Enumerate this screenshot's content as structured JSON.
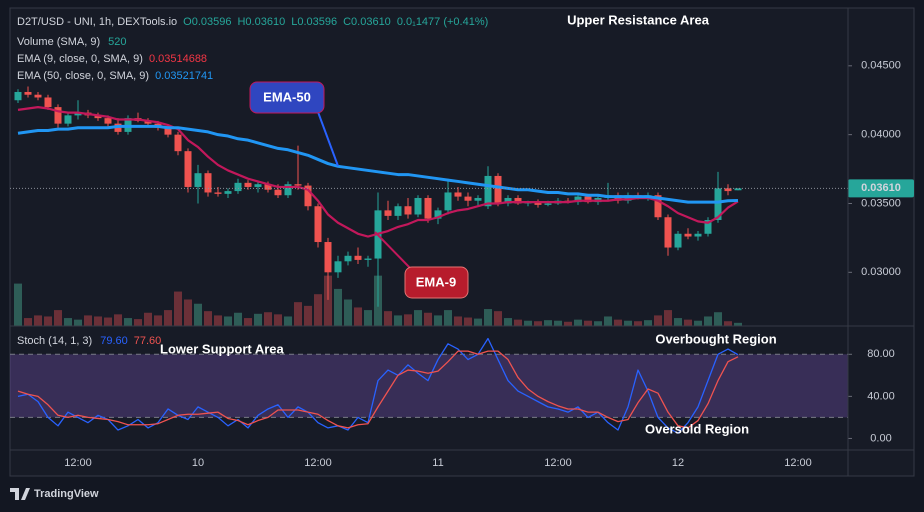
{
  "chart_data": [
    {
      "type": "candlestick",
      "title": "D2T/USD - UNI, 1h, DEXTools.io",
      "header": [
        "O0.03596",
        "H0.03610",
        "L0.03596",
        "C0.03610",
        "0.0₁1477 (+0.41%)"
      ],
      "open": [
        0.0425,
        0.0431,
        0.0429,
        0.0427,
        0.042,
        0.0408,
        0.0414,
        0.0416,
        0.0414,
        0.0412,
        0.0408,
        0.0402,
        0.0412,
        0.041,
        0.0408,
        0.0405,
        0.04,
        0.0388,
        0.0362,
        0.0372,
        0.0358,
        0.0357,
        0.0359,
        0.0365,
        0.0362,
        0.0364,
        0.036,
        0.0356,
        0.0364,
        0.0363,
        0.0348,
        0.0322,
        0.03,
        0.0308,
        0.0312,
        0.0309,
        0.031,
        0.0345,
        0.0341,
        0.0348,
        0.0342,
        0.0354,
        0.0339,
        0.0345,
        0.0358,
        0.0355,
        0.0352,
        0.0348,
        0.037,
        0.035,
        0.0354,
        0.035,
        0.0351,
        0.0349,
        0.035,
        0.0352,
        0.0351,
        0.0355,
        0.0351,
        0.0354,
        0.0356,
        0.0352,
        0.0356,
        0.0355,
        0.0356,
        0.034,
        0.0318,
        0.0328,
        0.0326,
        0.0328,
        0.0338,
        0.0361,
        0.03596,
        null,
        null,
        null,
        null,
        null,
        null
      ],
      "high": [
        0.0433,
        0.0435,
        0.0431,
        0.0429,
        0.0422,
        0.0416,
        0.0425,
        0.0418,
        0.0416,
        0.0414,
        0.0412,
        0.0414,
        0.0416,
        0.0412,
        0.041,
        0.0407,
        0.0402,
        0.039,
        0.0378,
        0.0374,
        0.0362,
        0.0361,
        0.0368,
        0.0367,
        0.0366,
        0.0366,
        0.0364,
        0.0366,
        0.0392,
        0.0365,
        0.035,
        0.0325,
        0.0312,
        0.0315,
        0.0318,
        0.0312,
        0.0358,
        0.0352,
        0.035,
        0.0354,
        0.0356,
        0.0356,
        0.0347,
        0.0368,
        0.0362,
        0.0358,
        0.0356,
        0.0377,
        0.0372,
        0.0356,
        0.0356,
        0.0352,
        0.0353,
        0.0352,
        0.0354,
        0.0354,
        0.0356,
        0.0357,
        0.0355,
        0.0365,
        0.0358,
        0.0358,
        0.0358,
        0.0358,
        0.0358,
        0.0342,
        0.033,
        0.0332,
        0.033,
        0.034,
        0.0373,
        0.0364,
        0.0361,
        null,
        null,
        null,
        null,
        null,
        null
      ],
      "low": [
        0.0423,
        0.0427,
        0.0425,
        0.0418,
        0.0405,
        0.0406,
        0.0411,
        0.0412,
        0.041,
        0.0406,
        0.04,
        0.04,
        0.0409,
        0.0406,
        0.0403,
        0.0398,
        0.0385,
        0.0358,
        0.035,
        0.0355,
        0.0355,
        0.0354,
        0.0357,
        0.036,
        0.0358,
        0.0358,
        0.0354,
        0.0354,
        0.036,
        0.0345,
        0.0318,
        0.028,
        0.0296,
        0.0305,
        0.0306,
        0.0304,
        0.0275,
        0.0338,
        0.0338,
        0.0339,
        0.034,
        0.0336,
        0.0335,
        0.0342,
        0.0352,
        0.0348,
        0.0348,
        0.0346,
        0.0348,
        0.0348,
        0.0349,
        0.0348,
        0.0347,
        0.0348,
        0.0349,
        0.035,
        0.0349,
        0.035,
        0.0349,
        0.0352,
        0.035,
        0.035,
        0.0353,
        0.0352,
        0.0338,
        0.0312,
        0.0316,
        0.0324,
        0.0323,
        0.0326,
        0.0336,
        0.0356,
        0.03596,
        null,
        null,
        null,
        null,
        null,
        null
      ],
      "close": [
        0.0431,
        0.0429,
        0.0427,
        0.042,
        0.0408,
        0.0414,
        0.0416,
        0.0414,
        0.0412,
        0.0408,
        0.0402,
        0.0412,
        0.041,
        0.0408,
        0.0405,
        0.04,
        0.0388,
        0.0362,
        0.0372,
        0.0358,
        0.0357,
        0.0359,
        0.0365,
        0.0362,
        0.0364,
        0.036,
        0.0356,
        0.0364,
        0.0363,
        0.0348,
        0.0322,
        0.03,
        0.0308,
        0.0312,
        0.0309,
        0.031,
        0.0345,
        0.0341,
        0.0348,
        0.0342,
        0.0354,
        0.0339,
        0.0345,
        0.0358,
        0.0355,
        0.0352,
        0.0354,
        0.037,
        0.035,
        0.0354,
        0.035,
        0.0351,
        0.0349,
        0.035,
        0.0352,
        0.0351,
        0.0355,
        0.0351,
        0.0354,
        0.0356,
        0.0352,
        0.0356,
        0.0355,
        0.0356,
        0.034,
        0.0318,
        0.0328,
        0.0326,
        0.0328,
        0.0338,
        0.0361,
        0.0359,
        0.0361,
        null,
        null,
        null,
        null,
        null,
        null
      ],
      "up_color": "#26a69a",
      "down_color": "#ef5350",
      "ylim": [
        0.0261,
        0.0492
      ],
      "yticks": [
        {
          "value": 0.03,
          "label": "0.03000"
        },
        {
          "value": 0.035,
          "label": "0.03500"
        },
        {
          "value": 0.04,
          "label": "0.04000"
        },
        {
          "value": 0.045,
          "label": "0.04500"
        }
      ],
      "y2lim": [
        0,
        6000
      ],
      "series": [
        {
          "name": "Volume (SMA, 9)",
          "type": "bar",
          "axis": "y2",
          "legend_value": "520",
          "up_color": "#2e5d57",
          "down_color": "#6b3038",
          "values": [
            800,
            150,
            200,
            180,
            300,
            150,
            120,
            200,
            180,
            160,
            220,
            150,
            130,
            250,
            200,
            300,
            650,
            500,
            420,
            280,
            200,
            180,
            250,
            150,
            230,
            260,
            220,
            180,
            450,
            380,
            600,
            950,
            700,
            500,
            350,
            300,
            950,
            280,
            200,
            220,
            300,
            250,
            200,
            300,
            180,
            160,
            140,
            320,
            280,
            150,
            120,
            100,
            90,
            110,
            100,
            80,
            120,
            100,
            90,
            180,
            120,
            100,
            90,
            110,
            200,
            300,
            150,
            120,
            100,
            180,
            260,
            90,
            60,
            null,
            null,
            null,
            null,
            null,
            null
          ]
        },
        {
          "name": "EMA (9, close, 0, SMA, 9)",
          "color": "#c2185b",
          "legend_value": "0.03514688",
          "values": [
            0.0418,
            0.0419,
            0.042,
            0.0419,
            0.0417,
            0.0416,
            0.0416,
            0.0415,
            0.0414,
            0.0413,
            0.0411,
            0.0411,
            0.0411,
            0.041,
            0.0409,
            0.0407,
            0.0404,
            0.0396,
            0.0391,
            0.0384,
            0.0378,
            0.0374,
            0.0371,
            0.0368,
            0.0366,
            0.0364,
            0.0362,
            0.0362,
            0.0362,
            0.036,
            0.0352,
            0.0342,
            0.0336,
            0.0332,
            0.0328,
            0.0326,
            0.0328,
            0.033,
            0.0333,
            0.0335,
            0.0338,
            0.0338,
            0.034,
            0.0343,
            0.0345,
            0.0346,
            0.0348,
            0.035,
            0.035,
            0.0351,
            0.0351,
            0.0351,
            0.0351,
            0.0351,
            0.0351,
            0.0351,
            0.0352,
            0.0352,
            0.0352,
            0.0352,
            0.0353,
            0.0353,
            0.0354,
            0.0354,
            0.0352,
            0.0348,
            0.0343,
            0.034,
            0.0337,
            0.0336,
            0.034,
            0.0347,
            0.03514688,
            null,
            null,
            null,
            null,
            null,
            null
          ]
        },
        {
          "name": "EMA (50, close, 0, SMA, 9)",
          "color": "#2196f3",
          "legend_value": "0.03521741",
          "values": [
            0.0401,
            0.0402,
            0.0403,
            0.0403,
            0.0404,
            0.0404,
            0.0405,
            0.0405,
            0.0405,
            0.0405,
            0.0406,
            0.0406,
            0.0406,
            0.0406,
            0.0406,
            0.0405,
            0.0405,
            0.0404,
            0.0403,
            0.0402,
            0.04,
            0.0399,
            0.0397,
            0.0396,
            0.0394,
            0.0392,
            0.039,
            0.0389,
            0.0387,
            0.0385,
            0.0382,
            0.0379,
            0.0377,
            0.0376,
            0.0375,
            0.0374,
            0.0373,
            0.0372,
            0.0371,
            0.0371,
            0.037,
            0.0369,
            0.0368,
            0.0367,
            0.0366,
            0.0365,
            0.0364,
            0.0363,
            0.0362,
            0.0361,
            0.036,
            0.036,
            0.0359,
            0.0358,
            0.0358,
            0.0357,
            0.0357,
            0.0356,
            0.0356,
            0.0355,
            0.0355,
            0.0355,
            0.0355,
            0.0355,
            0.0354,
            0.0353,
            0.0352,
            0.0351,
            0.0351,
            0.0351,
            0.0351,
            0.0352,
            0.03521741,
            null,
            null,
            null,
            null,
            null,
            null
          ]
        }
      ],
      "last_price": {
        "value": 0.0361,
        "label": "0.03610"
      },
      "annotations": [
        "Upper Resistance Area",
        "EMA-50",
        "EMA-9"
      ]
    },
    {
      "type": "line",
      "title": "Stoch (14, 1, 3)",
      "categories": [
        null,
        null,
        null,
        null,
        null,
        null,
        "12:00",
        null,
        null,
        null,
        null,
        null,
        null,
        null,
        null,
        null,
        null,
        null,
        "10",
        null,
        null,
        null,
        null,
        null,
        null,
        null,
        null,
        null,
        null,
        null,
        "12:00",
        null,
        null,
        null,
        null,
        null,
        null,
        null,
        null,
        null,
        null,
        null,
        "11",
        null,
        null,
        null,
        null,
        null,
        null,
        null,
        null,
        null,
        null,
        null,
        "12:00",
        null,
        null,
        null,
        null,
        null,
        null,
        null,
        null,
        null,
        null,
        null,
        "12",
        null,
        null,
        null,
        null,
        null,
        null,
        null,
        null,
        null,
        null,
        null,
        "12:00"
      ],
      "ylim": [
        -11,
        105
      ],
      "yticks": [
        {
          "value": 0,
          "label": "0.00"
        },
        {
          "value": 40,
          "label": "40.00"
        },
        {
          "value": 80,
          "label": "80.00"
        }
      ],
      "band": [
        20,
        80
      ],
      "band_color": "rgba(126,87,194,0.32)",
      "series": [
        {
          "color": "#2962ff",
          "legend_value": "79.60",
          "values": [
            40,
            42,
            35,
            20,
            12,
            25,
            20,
            15,
            22,
            18,
            8,
            12,
            18,
            10,
            15,
            28,
            22,
            18,
            30,
            25,
            20,
            12,
            18,
            10,
            22,
            28,
            32,
            20,
            30,
            25,
            15,
            10,
            12,
            8,
            20,
            15,
            55,
            65,
            60,
            70,
            62,
            55,
            75,
            90,
            85,
            75,
            80,
            95,
            75,
            55,
            45,
            40,
            35,
            30,
            28,
            25,
            30,
            20,
            25,
            15,
            8,
            30,
            65,
            45,
            20,
            10,
            5,
            15,
            30,
            55,
            80,
            85,
            79.6,
            null,
            null,
            null,
            null,
            null,
            null
          ]
        },
        {
          "color": "#ef5350",
          "legend_value": "77.60",
          "values": [
            45,
            42,
            40,
            32,
            22,
            20,
            22,
            20,
            19,
            18,
            16,
            13,
            13,
            13,
            14,
            18,
            22,
            23,
            23,
            24,
            25,
            19,
            17,
            13,
            17,
            20,
            27,
            27,
            27,
            25,
            23,
            17,
            12,
            10,
            13,
            14,
            30,
            45,
            60,
            65,
            64,
            62,
            64,
            73,
            83,
            83,
            80,
            83,
            83,
            75,
            58,
            47,
            40,
            35,
            31,
            28,
            28,
            25,
            25,
            20,
            16,
            18,
            34,
            47,
            43,
            25,
            12,
            10,
            17,
            33,
            55,
            73,
            77.6,
            null,
            null,
            null,
            null,
            null,
            null
          ]
        }
      ],
      "annotations": [
        "Lower Support Area",
        "Overbought Region",
        "Oversold Region"
      ]
    }
  ],
  "brand": "TradingView"
}
